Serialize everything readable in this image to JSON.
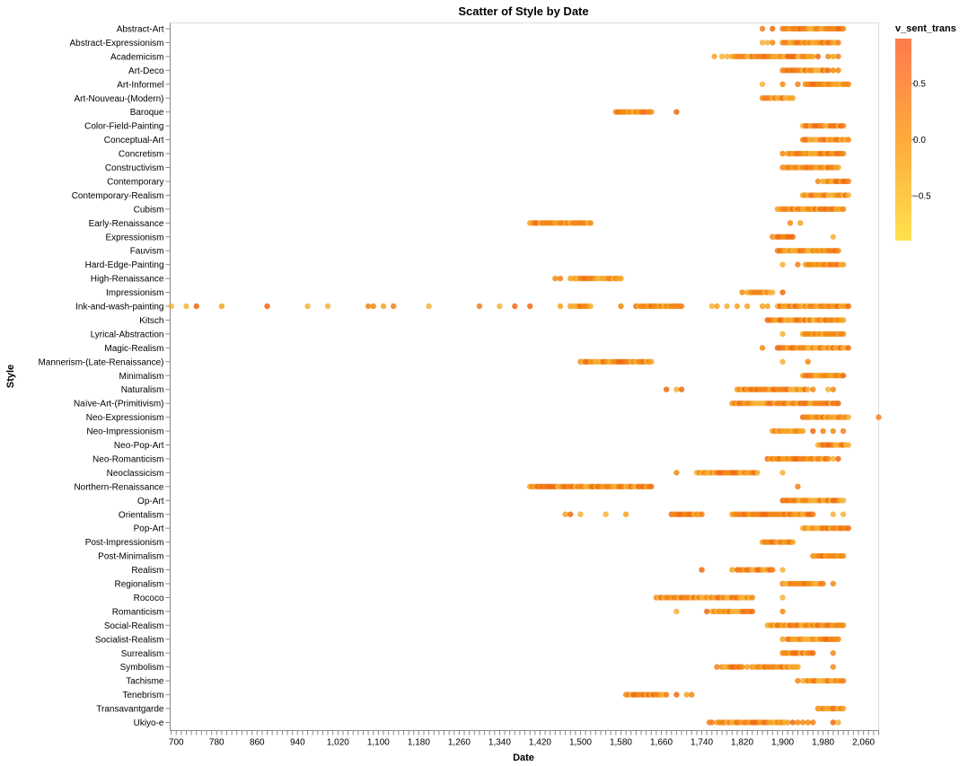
{
  "chart_data": {
    "type": "scatter",
    "title": "Scatter of Style by Date",
    "xlabel": "Date",
    "ylabel": "Style",
    "xlim": [
      688,
      2090
    ],
    "x_ticks": [
      700,
      780,
      860,
      940,
      1020,
      1100,
      1180,
      1260,
      1340,
      1420,
      1500,
      1580,
      1660,
      1740,
      1820,
      1900,
      1980,
      2060
    ],
    "x_tick_labels": [
      "700",
      "780",
      "860",
      "940",
      "1,020",
      "1,100",
      "1,180",
      "1,260",
      "1,340",
      "1,420",
      "1,500",
      "1,580",
      "1,660",
      "1,740",
      "1,820",
      "1,900",
      "1,980",
      "2,060"
    ],
    "grid": false,
    "legend": {
      "title": "v_sent_trans",
      "placement": "top-right",
      "type": "gradient",
      "domain": [
        -0.9,
        0.9
      ],
      "ticks": [
        0.5,
        0.0,
        -0.5
      ],
      "tick_labels": [
        "0.5",
        "0.0",
        "−0.5"
      ],
      "color_low": "#fee250",
      "color_mid": "#fdaa3c",
      "color_high": "#fd7a4e"
    },
    "point_colors": [
      "#f28a0f",
      "#f5a31f",
      "#f47f1a",
      "#f7b13a",
      "#f06a10"
    ],
    "series": [
      {
        "name": "Abstract-Art",
        "ranges": [
          [
            1900,
            2020
          ]
        ],
        "points": [
          1860,
          1880
        ]
      },
      {
        "name": "Abstract-Expressionism",
        "ranges": [
          [
            1900,
            2010
          ]
        ],
        "points": [
          1860,
          1870,
          1880
        ]
      },
      {
        "name": "Academicism",
        "ranges": [
          [
            1805,
            1960
          ]
        ],
        "points": [
          1765,
          1780,
          1790,
          1800,
          1970,
          1990,
          2000,
          2010
        ]
      },
      {
        "name": "Art-Deco",
        "ranges": [
          [
            1900,
            1990
          ]
        ],
        "points": [
          2000,
          2010
        ]
      },
      {
        "name": "Art-Informel",
        "ranges": [
          [
            1945,
            2030
          ]
        ],
        "points": [
          1860,
          1900,
          1930
        ]
      },
      {
        "name": "Art-Nouveau-(Modern)",
        "ranges": [
          [
            1860,
            1920
          ]
        ],
        "points": []
      },
      {
        "name": "Baroque",
        "ranges": [
          [
            1570,
            1640
          ]
        ],
        "points": [
          1690
        ]
      },
      {
        "name": "Color-Field-Painting",
        "ranges": [
          [
            1940,
            2020
          ]
        ],
        "points": []
      },
      {
        "name": "Conceptual-Art",
        "ranges": [
          [
            1940,
            2030
          ]
        ],
        "points": []
      },
      {
        "name": "Concretism",
        "ranges": [
          [
            1910,
            2020
          ]
        ],
        "points": [
          1900
        ]
      },
      {
        "name": "Constructivism",
        "ranges": [
          [
            1900,
            2010
          ]
        ],
        "points": []
      },
      {
        "name": "Contemporary",
        "ranges": [
          [
            1980,
            2030
          ]
        ],
        "points": [
          1970
        ]
      },
      {
        "name": "Contemporary-Realism",
        "ranges": [
          [
            1940,
            2030
          ]
        ],
        "points": []
      },
      {
        "name": "Cubism",
        "ranges": [
          [
            1890,
            2020
          ]
        ],
        "points": []
      },
      {
        "name": "Early-Renaissance",
        "ranges": [
          [
            1400,
            1520
          ]
        ],
        "points": [
          1915,
          1935
        ]
      },
      {
        "name": "Expressionism",
        "ranges": [
          [
            1880,
            1920
          ]
        ],
        "points": [
          2000
        ]
      },
      {
        "name": "Fauvism",
        "ranges": [
          [
            1890,
            2010
          ]
        ],
        "points": []
      },
      {
        "name": "Hard-Edge-Painting",
        "ranges": [
          [
            1945,
            2020
          ]
        ],
        "points": [
          1900,
          1930
        ]
      },
      {
        "name": "High-Renaissance",
        "ranges": [
          [
            1480,
            1580
          ]
        ],
        "points": [
          1450,
          1460
        ]
      },
      {
        "name": "Impressionism",
        "ranges": [
          [
            1830,
            1880
          ]
        ],
        "points": [
          1820,
          1900
        ]
      },
      {
        "name": "Ink-and-wash-painting",
        "ranges": [
          [
            1890,
            2030
          ],
          [
            1480,
            1520
          ],
          [
            1610,
            1700
          ]
        ],
        "points": [
          690,
          720,
          740,
          790,
          880,
          960,
          1000,
          1080,
          1090,
          1110,
          1130,
          1200,
          1300,
          1340,
          1370,
          1400,
          1460,
          1580,
          1760,
          1770,
          1790,
          1810,
          1830,
          1860,
          1870
        ]
      },
      {
        "name": "Kitsch",
        "ranges": [
          [
            1870,
            2020
          ]
        ],
        "points": []
      },
      {
        "name": "Lyrical-Abstraction",
        "ranges": [
          [
            1940,
            2020
          ]
        ],
        "points": [
          1900
        ]
      },
      {
        "name": "Magic-Realism",
        "ranges": [
          [
            1890,
            2030
          ]
        ],
        "points": [
          1860
        ]
      },
      {
        "name": "Mannerism-(Late-Renaissance)",
        "ranges": [
          [
            1500,
            1640
          ]
        ],
        "points": [
          1900,
          1950
        ]
      },
      {
        "name": "Minimalism",
        "ranges": [
          [
            1940,
            2020
          ]
        ],
        "points": []
      },
      {
        "name": "Naturalism",
        "ranges": [
          [
            1810,
            1950
          ]
        ],
        "points": [
          1670,
          1690,
          1700,
          1960,
          1990,
          2000
        ]
      },
      {
        "name": "Naïve-Art-(Primitivism)",
        "ranges": [
          [
            1800,
            2010
          ]
        ],
        "points": []
      },
      {
        "name": "Neo-Expressionism",
        "ranges": [
          [
            1940,
            2030
          ]
        ],
        "points": [
          2090
        ]
      },
      {
        "name": "Neo-Impressionism",
        "ranges": [
          [
            1880,
            1940
          ]
        ],
        "points": [
          1960,
          1980,
          2000,
          2020
        ]
      },
      {
        "name": "Neo-Pop-Art",
        "ranges": [
          [
            1970,
            2030
          ]
        ],
        "points": []
      },
      {
        "name": "Neo-Romanticism",
        "ranges": [
          [
            1870,
            1990
          ]
        ],
        "points": [
          2000,
          2010
        ]
      },
      {
        "name": "Neoclassicism",
        "ranges": [
          [
            1730,
            1850
          ]
        ],
        "points": [
          1690,
          1900
        ]
      },
      {
        "name": "Northern-Renaissance",
        "ranges": [
          [
            1400,
            1640
          ]
        ],
        "points": [
          1930
        ]
      },
      {
        "name": "Op-Art",
        "ranges": [
          [
            1900,
            2020
          ]
        ],
        "points": []
      },
      {
        "name": "Orientalism",
        "ranges": [
          [
            1800,
            1960
          ],
          [
            1680,
            1740
          ]
        ],
        "points": [
          1470,
          1480,
          1500,
          1550,
          1590,
          2000,
          2020
        ]
      },
      {
        "name": "Pop-Art",
        "ranges": [
          [
            1940,
            2030
          ]
        ],
        "points": []
      },
      {
        "name": "Post-Impressionism",
        "ranges": [
          [
            1860,
            1920
          ]
        ],
        "points": []
      },
      {
        "name": "Post-Minimalism",
        "ranges": [
          [
            1960,
            2020
          ]
        ],
        "points": []
      },
      {
        "name": "Realism",
        "ranges": [
          [
            1810,
            1880
          ]
        ],
        "points": [
          1740,
          1800,
          1900
        ]
      },
      {
        "name": "Regionalism",
        "ranges": [
          [
            1900,
            1980
          ]
        ],
        "points": [
          2000
        ]
      },
      {
        "name": "Rococo",
        "ranges": [
          [
            1650,
            1840
          ]
        ],
        "points": [
          1900
        ]
      },
      {
        "name": "Romanticism",
        "ranges": [
          [
            1760,
            1840
          ]
        ],
        "points": [
          1690,
          1750,
          1900
        ]
      },
      {
        "name": "Social-Realism",
        "ranges": [
          [
            1870,
            2020
          ]
        ],
        "points": []
      },
      {
        "name": "Socialist-Realism",
        "ranges": [
          [
            1910,
            2010
          ]
        ],
        "points": [
          1900
        ]
      },
      {
        "name": "Surrealism",
        "ranges": [
          [
            1900,
            1960
          ]
        ],
        "points": [
          2000
        ]
      },
      {
        "name": "Symbolism",
        "ranges": [
          [
            1780,
            1820
          ],
          [
            1840,
            1930
          ]
        ],
        "points": [
          1770,
          1830,
          2000
        ]
      },
      {
        "name": "Tachisme",
        "ranges": [
          [
            1940,
            2020
          ]
        ],
        "points": [
          1930
        ]
      },
      {
        "name": "Tenebrism",
        "ranges": [
          [
            1590,
            1670
          ]
        ],
        "points": [
          1690,
          1710,
          1720
        ]
      },
      {
        "name": "Transavantgarde",
        "ranges": [
          [
            1970,
            2020
          ]
        ],
        "points": []
      },
      {
        "name": "Ukiyo-e",
        "ranges": [
          [
            1770,
            1910
          ]
        ],
        "points": [
          1755,
          1760,
          1920,
          1930,
          1940,
          1950,
          1960,
          2000,
          2010
        ]
      }
    ]
  }
}
